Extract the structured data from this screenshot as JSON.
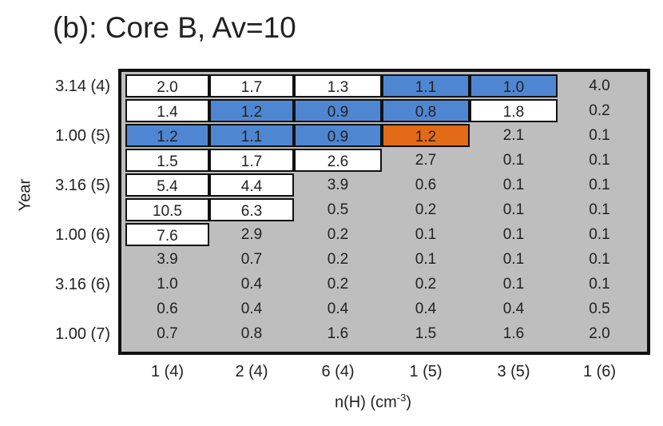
{
  "chart_data": {
    "type": "table",
    "title": "(b): Core B, Av=10",
    "ylabel": "Year",
    "xlabel": "n(H) (cm",
    "xlabel_sup": "-3",
    "xlabel_close": ")",
    "x_ticks": [
      "1 (4)",
      "2 (4)",
      "6 (4)",
      "1 (5)",
      "3 (5)",
      "1 (6)"
    ],
    "y_ticks": [
      {
        "row": 0,
        "label": "3.14 (4)"
      },
      {
        "row": 2,
        "label": "1.00 (5)"
      },
      {
        "row": 4,
        "label": "3.16 (5)"
      },
      {
        "row": 6,
        "label": "1.00 (6)"
      },
      {
        "row": 8,
        "label": "3.16 (6)"
      },
      {
        "row": 10,
        "label": "1.00 (7)"
      }
    ],
    "rows": [
      [
        "2.0",
        "1.7",
        "1.3",
        "1.1",
        "1.0",
        "4.0"
      ],
      [
        "1.4",
        "1.2",
        "0.9",
        "0.8",
        "1.8",
        "0.2"
      ],
      [
        "1.2",
        "1.1",
        "0.9",
        "1.2",
        "2.1",
        "0.1"
      ],
      [
        "1.5",
        "1.7",
        "2.6",
        "2.7",
        "0.1",
        "0.1"
      ],
      [
        "5.4",
        "4.4",
        "3.9",
        "0.6",
        "0.1",
        "0.1"
      ],
      [
        "10.5",
        "6.3",
        "0.5",
        "0.2",
        "0.1",
        "0.1"
      ],
      [
        "7.6",
        "2.9",
        "0.2",
        "0.1",
        "0.1",
        "0.1"
      ],
      [
        "3.9",
        "0.7",
        "0.2",
        "0.1",
        "0.1",
        "0.1"
      ],
      [
        "1.0",
        "0.4",
        "0.2",
        "0.2",
        "0.1",
        "0.1"
      ],
      [
        "0.6",
        "0.4",
        "0.4",
        "0.4",
        "0.4",
        "0.5"
      ],
      [
        "0.7",
        "0.8",
        "1.6",
        "1.5",
        "1.6",
        "2.0"
      ]
    ],
    "highlight": [
      [
        "white",
        "white",
        "white",
        "blue",
        "blue",
        "gray"
      ],
      [
        "white",
        "blue",
        "blue",
        "blue",
        "white",
        "gray"
      ],
      [
        "blue",
        "blue",
        "blue",
        "orange",
        "gray",
        "gray"
      ],
      [
        "white",
        "white",
        "white",
        "gray",
        "gray",
        "gray"
      ],
      [
        "white",
        "white",
        "gray",
        "gray",
        "gray",
        "gray"
      ],
      [
        "white",
        "white",
        "gray",
        "gray",
        "gray",
        "gray"
      ],
      [
        "white",
        "gray",
        "gray",
        "gray",
        "gray",
        "gray"
      ],
      [
        "gray",
        "gray",
        "gray",
        "gray",
        "gray",
        "gray"
      ],
      [
        "gray",
        "gray",
        "gray",
        "gray",
        "gray",
        "gray"
      ],
      [
        "gray",
        "gray",
        "gray",
        "gray",
        "gray",
        "gray"
      ],
      [
        "gray",
        "gray",
        "gray",
        "gray",
        "gray",
        "gray"
      ]
    ],
    "colors": {
      "blue": "#4f86d2",
      "orange": "#e36a16",
      "gray": "#bebebe",
      "white": "#ffffff"
    }
  }
}
